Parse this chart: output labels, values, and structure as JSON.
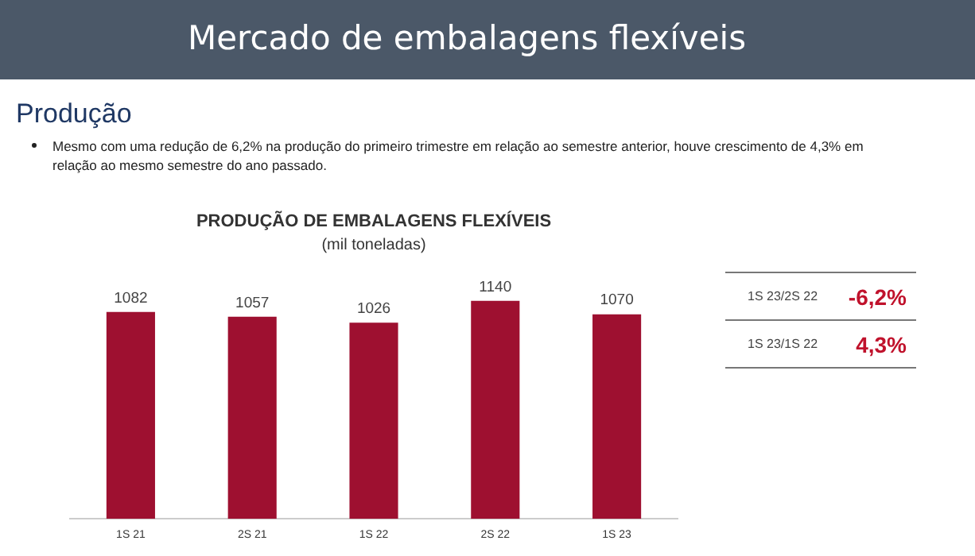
{
  "chart_data": {
    "type": "bar",
    "title": "PRODUÇÃO DE EMBALAGENS FLEXÍVEIS",
    "subtitle": "(mil toneladas)",
    "categories": [
      "1S 21",
      "2S 21",
      "1S 22",
      "2S 22",
      "1S 23"
    ],
    "values": [
      1082,
      1057,
      1026,
      1140,
      1070
    ],
    "color": "#9e1030",
    "tick_labels": "x",
    "grid": false,
    "legend": false,
    "data_labels": true,
    "annotations": [
      "Mercado de embalagens flexíveis",
      "Produção",
      "Mesmo com uma redução de 6,2% na produção do primeiro trimestre em relação ao semestre anterior,   houve crescimento de 4,3%  em relação ao mesmo semestre do ano passado.",
      "1S 23/2S 22",
      "-6,2%",
      "1S 23/1S 22",
      "4,3%"
    ]
  }
}
